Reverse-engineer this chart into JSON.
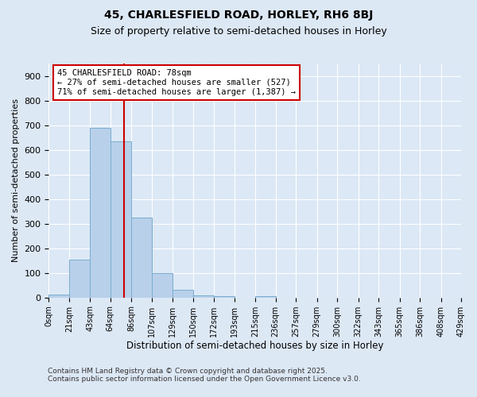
{
  "title1": "45, CHARLESFIELD ROAD, HORLEY, RH6 8BJ",
  "title2": "Size of property relative to semi-detached houses in Horley",
  "xlabel": "Distribution of semi-detached houses by size in Horley",
  "ylabel": "Number of semi-detached properties",
  "bin_edges": [
    0,
    21,
    43,
    64,
    86,
    107,
    129,
    150,
    172,
    193,
    215,
    236,
    257,
    279,
    300,
    322,
    343,
    365,
    386,
    408,
    429
  ],
  "bin_counts": [
    13,
    155,
    690,
    635,
    325,
    100,
    30,
    10,
    5,
    0,
    5,
    0,
    0,
    0,
    0,
    0,
    0,
    0,
    0,
    0
  ],
  "bar_color": "#b8d0ea",
  "bar_edge_color": "#7aadcf",
  "property_size": 78,
  "vline_color": "#cc0000",
  "annotation_text": "45 CHARLESFIELD ROAD: 78sqm\n← 27% of semi-detached houses are smaller (527)\n71% of semi-detached houses are larger (1,387) →",
  "annotation_box_color": "#ffffff",
  "annotation_box_edge_color": "#cc0000",
  "xlim_min": 0,
  "xlim_max": 429,
  "ylim_min": 0,
  "ylim_max": 950,
  "tick_labels": [
    "0sqm",
    "21sqm",
    "43sqm",
    "64sqm",
    "86sqm",
    "107sqm",
    "129sqm",
    "150sqm",
    "172sqm",
    "193sqm",
    "215sqm",
    "236sqm",
    "257sqm",
    "279sqm",
    "300sqm",
    "322sqm",
    "343sqm",
    "365sqm",
    "386sqm",
    "408sqm",
    "429sqm"
  ],
  "footer1": "Contains HM Land Registry data © Crown copyright and database right 2025.",
  "footer2": "Contains public sector information licensed under the Open Government Licence v3.0.",
  "bg_color": "#dde8f5",
  "plot_bg_color": "#dce8f5",
  "grid_color": "#ffffff",
  "title1_fontsize": 10,
  "title2_fontsize": 9,
  "annotation_fontsize": 7.5,
  "ylabel_fontsize": 8,
  "xlabel_fontsize": 8.5,
  "footer_fontsize": 6.5,
  "ytick_fontsize": 8,
  "xtick_fontsize": 7
}
